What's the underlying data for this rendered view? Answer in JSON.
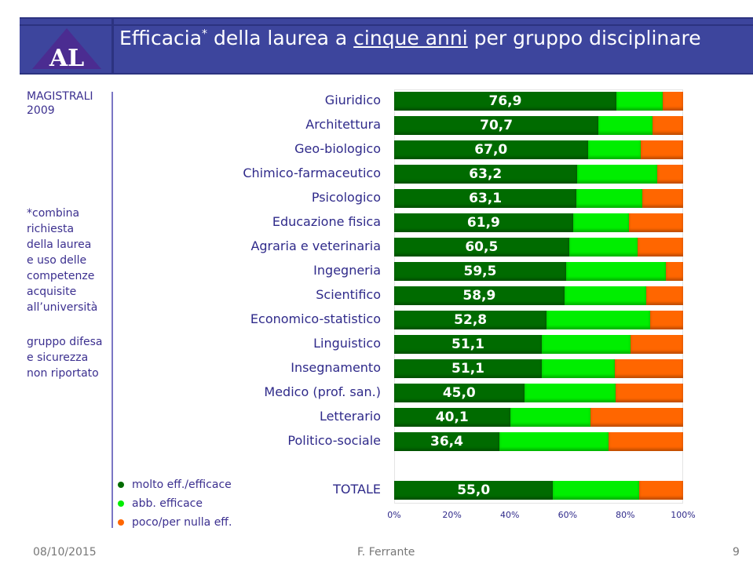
{
  "header": {
    "logo_text": "AL",
    "title_pre": "Efficacia",
    "title_star": "*",
    "title_mid": " della laurea a ",
    "title_underlined": "cinque anni",
    "title_post": " per gruppo disciplinare"
  },
  "side": {
    "line1": "MAGISTRALI",
    "line2": "2009",
    "note": [
      "*combina",
      "richiesta",
      "della laurea",
      "e uso delle",
      "competenze",
      "acquisite",
      "all’università"
    ],
    "note2": [
      "gruppo difesa",
      "e sicurezza",
      "non riportato"
    ]
  },
  "chart_data": {
    "type": "bar",
    "orientation": "horizontal",
    "stacked": "percent",
    "categories": [
      "Giuridico",
      "Architettura",
      "Geo-biologico",
      "Chimico-farmaceutico",
      "Psicologico",
      "Educazione fisica",
      "Agraria e veterinaria",
      "Ingegneria",
      "Scientifico",
      "Economico-statistico",
      "Linguistico",
      "Insegnamento",
      "Medico (prof. san.)",
      "Letterario",
      "Politico-sociale",
      "TOTALE"
    ],
    "series": [
      {
        "name": "molto eff./efficace",
        "color": "#006b00",
        "values": [
          76.9,
          70.7,
          67.0,
          63.2,
          63.1,
          61.9,
          60.5,
          59.5,
          58.9,
          52.8,
          51.1,
          51.1,
          45.0,
          40.1,
          36.4,
          55.0
        ]
      },
      {
        "name": "abb. efficace",
        "color": "#00ee00",
        "values": [
          16.0,
          18.7,
          18.3,
          27.8,
          22.8,
          19.4,
          23.7,
          34.5,
          28.3,
          35.8,
          30.7,
          25.3,
          31.6,
          27.8,
          37.8,
          29.8
        ]
      },
      {
        "name": "poco/per nulla eff.",
        "color": "#ff6600",
        "values": [
          7.1,
          10.6,
          14.7,
          9.0,
          14.1,
          18.7,
          15.8,
          6.0,
          12.8,
          11.4,
          18.2,
          23.6,
          23.4,
          32.1,
          25.8,
          15.2
        ]
      }
    ],
    "data_labels": [
      "76,9",
      "70,7",
      "67,0",
      "63,2",
      "63,1",
      "61,9",
      "60,5",
      "59,5",
      "58,9",
      "52,8",
      "51,1",
      "51,1",
      "45,0",
      "40,1",
      "36,4",
      "55,0"
    ],
    "xticks": [
      "0%",
      "20%",
      "40%",
      "60%",
      "80%",
      "100%"
    ],
    "xlim": [
      0,
      100
    ],
    "legend": "bottom-left"
  },
  "footer": {
    "date": "08/10/2015",
    "author": "F. Ferrante",
    "page": "9"
  }
}
